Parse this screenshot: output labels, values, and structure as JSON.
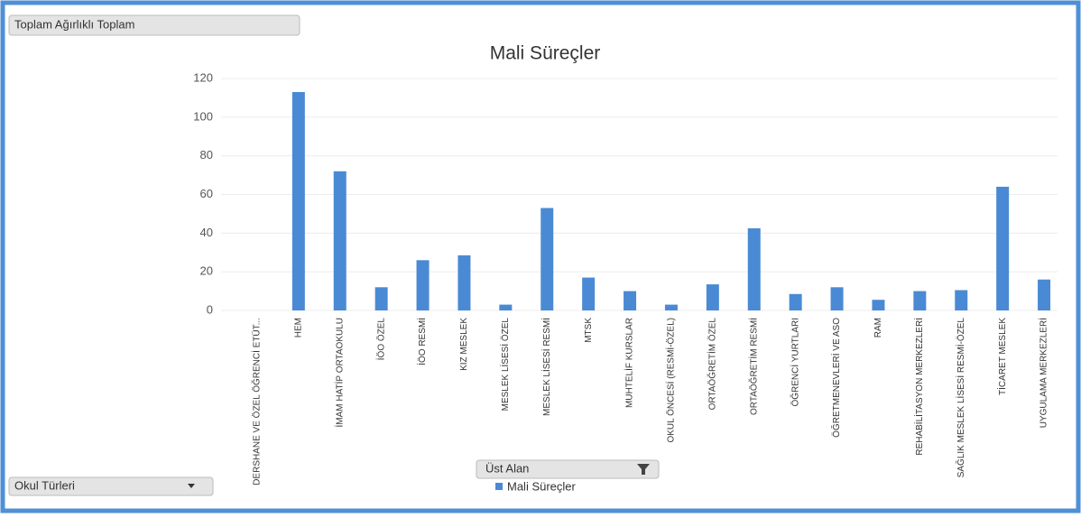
{
  "chart_data": {
    "type": "bar",
    "title": "Mali Süreçler",
    "value_field_button": "Toplam Ağırlıklı Toplam",
    "axis_field_button": "Okul Türleri",
    "legend_field_button": "Üst Alan",
    "categories": [
      "DERSHANE VE ÖZEL ÖĞRENCİ ETÜT...",
      "HEM",
      "İMAM HATİP ORTAOKULU",
      "İÖO ÖZEL",
      "İÖO RESMİ",
      "KIZ MESLEK",
      "MESLEK LİSESİ ÖZEL",
      "MESLEK LİSESİ RESMİ",
      "MTSK",
      "MUHTELİF KURSLAR",
      "OKUL ÖNCESİ (RESMİ-ÖZEL)",
      "ORTAÖĞRETİM ÖZEL",
      "ORTAÖĞRETİM RESMİ",
      "ÖĞRENCİ YURTLARI",
      "ÖĞRETMENEVLERİ VE ASO",
      "RAM",
      "REHABİLİTASYON MERKEZLERİ",
      "SAĞLIK MESLEK LİSESİ RESMİ-ÖZEL",
      "TİCARET MESLEK",
      "UYGULAMA MERKEZLERİ"
    ],
    "series": [
      {
        "name": "Mali Süreçler",
        "color": "#4a8ad4",
        "values": [
          0,
          113,
          72,
          12,
          26,
          28.5,
          3,
          53,
          17,
          10,
          3,
          13.5,
          42.5,
          8.5,
          12,
          5.5,
          10,
          10.5,
          64,
          16
        ]
      }
    ],
    "ylim": [
      0,
      120
    ],
    "yticks": [
      0,
      20,
      40,
      60,
      80,
      100,
      120
    ],
    "grid": true,
    "legend": "bottom"
  }
}
